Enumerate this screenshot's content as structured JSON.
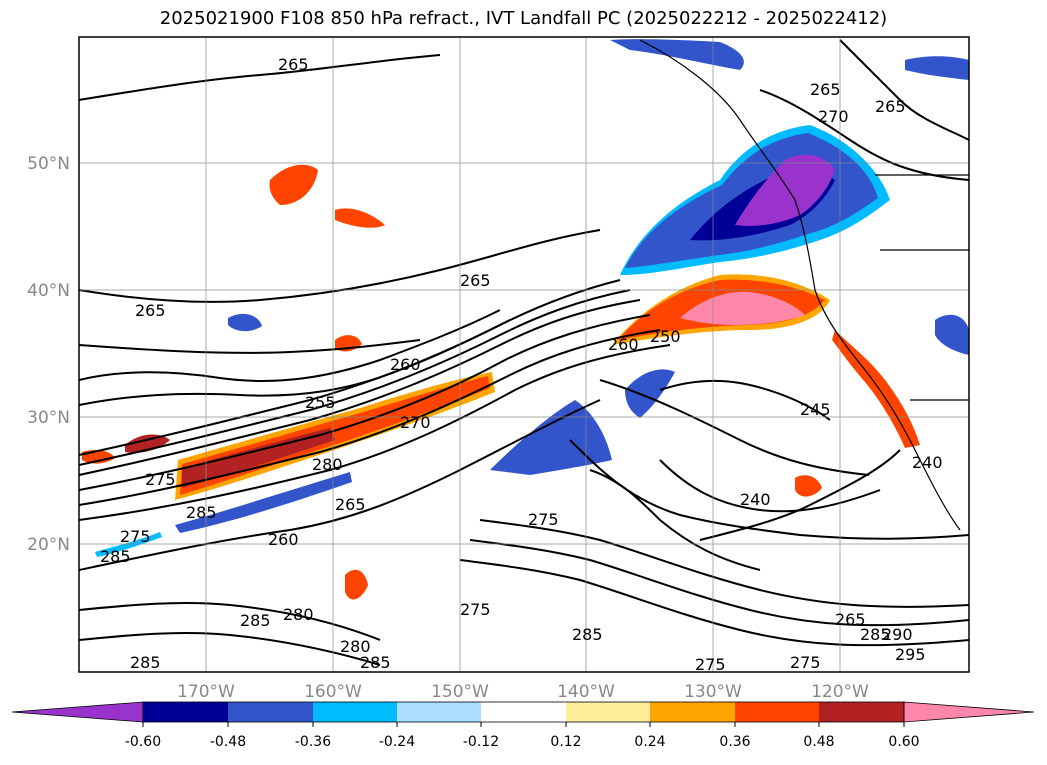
{
  "title": "2025021900 F108 850 hPa refract., IVT Landfall PC (2025022212 - 2025022412)",
  "lat_labels": [
    "50°N",
    "40°N",
    "30°N",
    "20°N"
  ],
  "lon_labels": [
    "170°W",
    "160°W",
    "150°W",
    "140°W",
    "130°W",
    "120°W"
  ],
  "contour_labels": [
    {
      "text": "265"
    },
    {
      "text": "265"
    },
    {
      "text": "265"
    },
    {
      "text": "265"
    },
    {
      "text": "265"
    },
    {
      "text": "260"
    },
    {
      "text": "255"
    },
    {
      "text": "270"
    },
    {
      "text": "280"
    },
    {
      "text": "275"
    },
    {
      "text": "285"
    },
    {
      "text": "275"
    },
    {
      "text": "285"
    },
    {
      "text": "260"
    },
    {
      "text": "265"
    },
    {
      "text": "275"
    },
    {
      "text": "275"
    },
    {
      "text": "285"
    },
    {
      "text": "280"
    },
    {
      "text": "285"
    },
    {
      "text": "250"
    },
    {
      "text": "245"
    },
    {
      "text": "240"
    },
    {
      "text": "240"
    },
    {
      "text": "285"
    },
    {
      "text": "275"
    },
    {
      "text": "275"
    },
    {
      "text": "265"
    },
    {
      "text": "285"
    },
    {
      "text": "290"
    },
    {
      "text": "295"
    },
    {
      "text": "280"
    },
    {
      "text": "285"
    },
    {
      "text": "260"
    },
    {
      "text": "270"
    }
  ],
  "colorbar": {
    "colors": [
      "#9933cc",
      "#000099",
      "#3355cc",
      "#00bbff",
      "#aaddff",
      "#ffffff",
      "#ffee99",
      "#ffa500",
      "#ff4400",
      "#b22222",
      "#ff88aa"
    ],
    "ticks": [
      "-0.60",
      "-0.48",
      "-0.36",
      "-0.24",
      "-0.12",
      "0.12",
      "0.24",
      "0.36",
      "0.48",
      "0.60"
    ]
  }
}
